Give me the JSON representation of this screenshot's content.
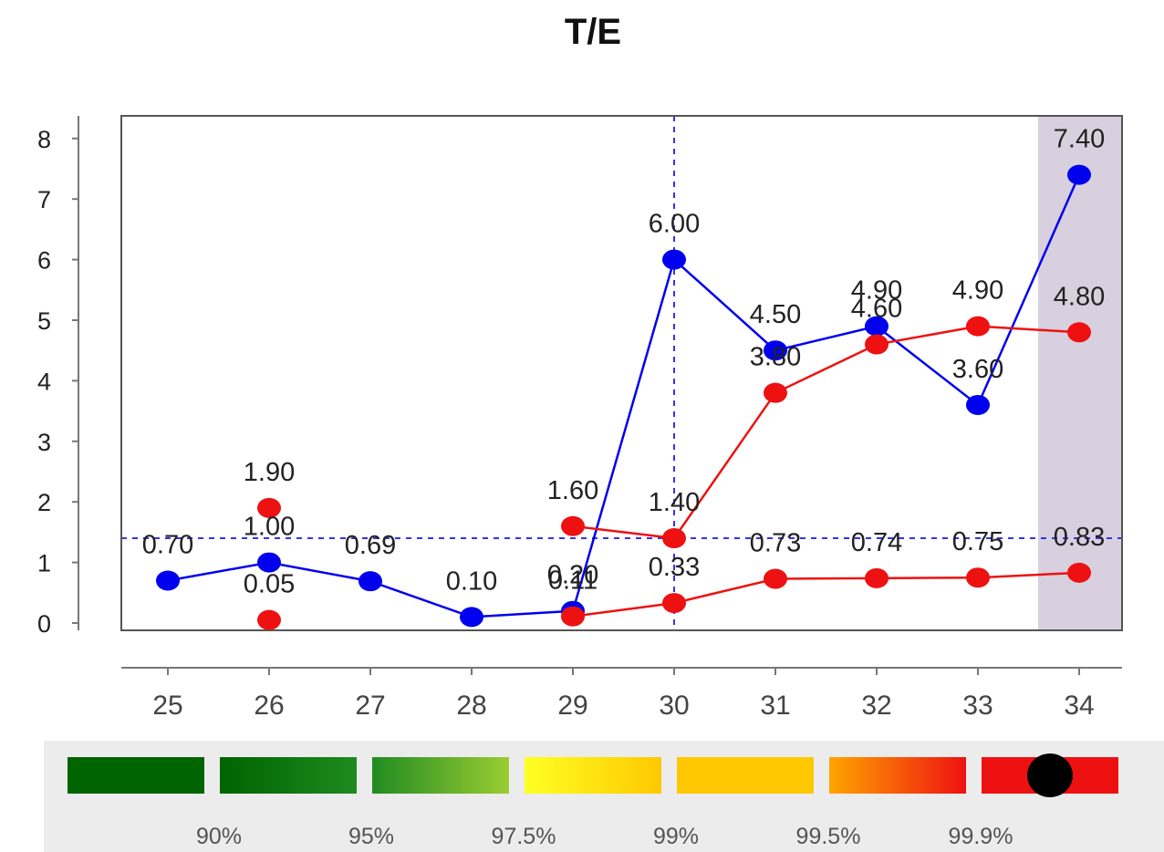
{
  "chart_data": {
    "type": "line",
    "title": "T/E",
    "x": [
      25,
      26,
      27,
      28,
      29,
      30,
      31,
      32,
      33,
      34
    ],
    "ylim": [
      0,
      8
    ],
    "yticks": [
      0,
      1,
      2,
      3,
      4,
      5,
      6,
      7,
      8
    ],
    "grid": false,
    "crosshair": {
      "x": 30,
      "y": 1.4
    },
    "highlight_x": 34,
    "series": [
      {
        "color": "#0000ee",
        "segments": [
          {
            "x": [
              25,
              26,
              27,
              28,
              29
            ],
            "y": [
              0.7,
              1.0,
              0.69,
              0.1,
              0.2
            ]
          },
          {
            "x": [
              29,
              30,
              31,
              32,
              33,
              34
            ],
            "y": [
              0.2,
              6.0,
              4.5,
              4.9,
              3.6,
              7.4
            ]
          }
        ],
        "points": [
          {
            "x": 25,
            "y": 0.7,
            "label": "0.70"
          },
          {
            "x": 26,
            "y": 1.0,
            "label": "1.00"
          },
          {
            "x": 27,
            "y": 0.69,
            "label": "0.69"
          },
          {
            "x": 28,
            "y": 0.1,
            "label": "0.10"
          },
          {
            "x": 29,
            "y": 0.2,
            "label": "0.20"
          },
          {
            "x": 30,
            "y": 6.0,
            "label": "6.00"
          },
          {
            "x": 31,
            "y": 4.5,
            "label": "4.50"
          },
          {
            "x": 32,
            "y": 4.9,
            "label": "4.90"
          },
          {
            "x": 33,
            "y": 3.6,
            "label": "3.60"
          },
          {
            "x": 34,
            "y": 7.4,
            "label": "7.40"
          }
        ]
      },
      {
        "color": "#ee1111",
        "segments": [
          {
            "x": [
              29,
              30,
              31,
              32,
              33,
              34
            ],
            "y": [
              1.6,
              1.4,
              3.8,
              4.6,
              4.9,
              4.8
            ]
          },
          {
            "x": [
              29,
              30,
              31,
              32,
              33,
              34
            ],
            "y": [
              0.11,
              0.33,
              0.73,
              0.74,
              0.75,
              0.83
            ]
          }
        ],
        "points": [
          {
            "x": 26,
            "y": 1.9,
            "label": "1.90"
          },
          {
            "x": 26,
            "y": 0.05,
            "label": "0.05"
          },
          {
            "x": 29,
            "y": 1.6,
            "label": "1.60"
          },
          {
            "x": 30,
            "y": 1.4,
            "label": "1.40"
          },
          {
            "x": 31,
            "y": 3.8,
            "label": "3.80"
          },
          {
            "x": 32,
            "y": 4.6,
            "label": "4.60"
          },
          {
            "x": 33,
            "y": 4.9,
            "label": "4.90"
          },
          {
            "x": 34,
            "y": 4.8,
            "label": "4.80"
          },
          {
            "x": 29,
            "y": 0.11,
            "label": "0.11"
          },
          {
            "x": 30,
            "y": 0.33,
            "label": "0.33"
          },
          {
            "x": 31,
            "y": 0.73,
            "label": "0.73"
          },
          {
            "x": 32,
            "y": 0.74,
            "label": "0.74"
          },
          {
            "x": 33,
            "y": 0.75,
            "label": "0.75"
          },
          {
            "x": 34,
            "y": 0.83,
            "label": "0.83"
          }
        ]
      }
    ],
    "percentile_legend": {
      "placement": "bottom",
      "labels": [
        "90%",
        "95%",
        "97.5%",
        "99%",
        "99.5%",
        "99.9%"
      ],
      "swatches": [
        {
          "from": "#006400",
          "to": "#006400"
        },
        {
          "from": "#006400",
          "to": "#1e8a1e"
        },
        {
          "from": "#228b22",
          "to": "#9acd32"
        },
        {
          "from": "#ffff22",
          "to": "#ffc800"
        },
        {
          "from": "#ffc800",
          "to": "#ffc800"
        },
        {
          "from": "#ffa500",
          "to": "#ee1111"
        },
        {
          "from": "#ee1111",
          "to": "#ee1111",
          "marker": "#000000"
        }
      ]
    }
  }
}
